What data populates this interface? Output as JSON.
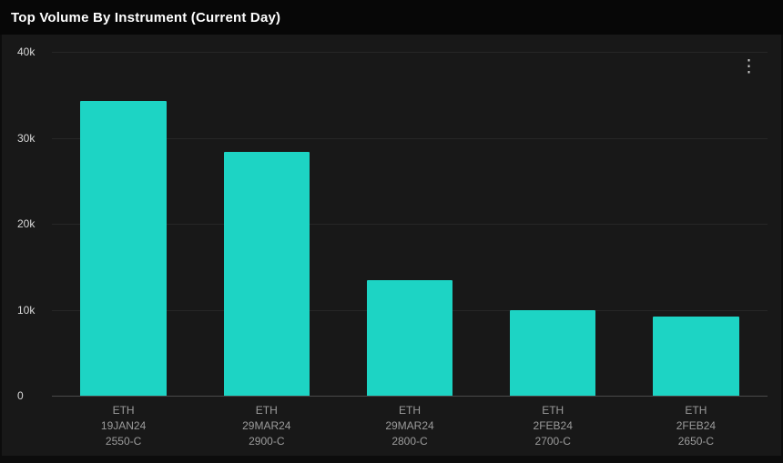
{
  "header": {
    "title": "Top Volume By Instrument (Current Day)"
  },
  "menu": {
    "kebab_glyph": "⋮"
  },
  "colors": {
    "bar": "#1DD4C4",
    "panel_background": "#181818",
    "header_background": "#070707",
    "axis_label": "#d9d9d9",
    "category_label": "#9b9b9b"
  },
  "chart_data": {
    "type": "bar",
    "title": "Top Volume By Instrument (Current Day)",
    "categories": [
      [
        "ETH",
        "19JAN24",
        "2550-C"
      ],
      [
        "ETH",
        "29MAR24",
        "2900-C"
      ],
      [
        "ETH",
        "29MAR24",
        "2800-C"
      ],
      [
        "ETH",
        "2FEB24",
        "2700-C"
      ],
      [
        "ETH",
        "2FEB24",
        "2650-C"
      ]
    ],
    "values": [
      34300,
      28400,
      13400,
      10000,
      9200
    ],
    "ylim": [
      0,
      40000
    ],
    "ytick_labels": [
      "40k",
      "30k",
      "20k",
      "10k",
      "0"
    ],
    "ytick_values": [
      40000,
      30000,
      20000,
      10000,
      0
    ],
    "xlabel": "",
    "ylabel": "",
    "grid": true,
    "legend": false,
    "bar_color": "#1DD4C4"
  }
}
